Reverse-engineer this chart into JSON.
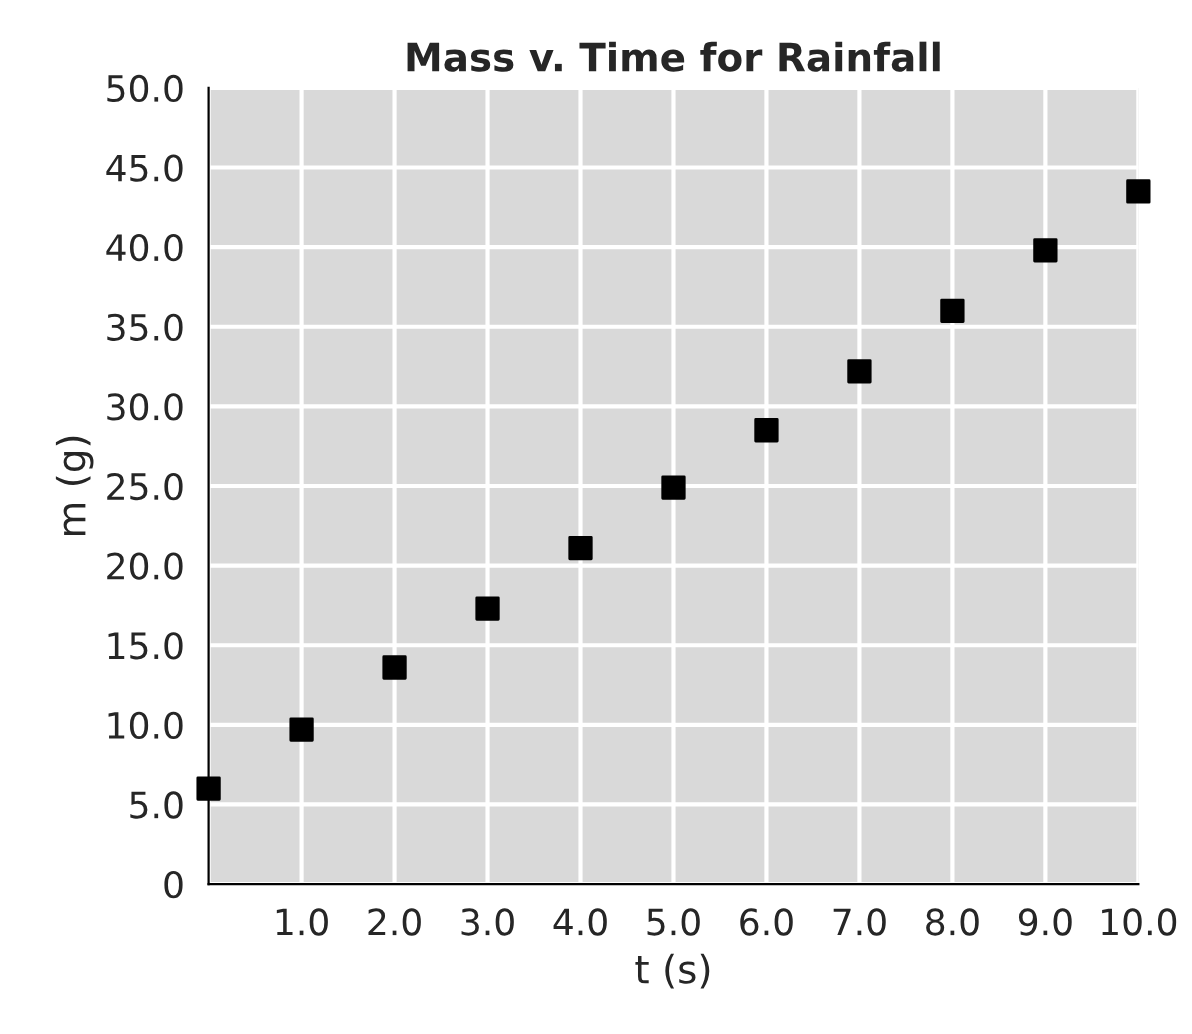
{
  "chart_data": {
    "type": "scatter",
    "title": "Mass v. Time for Rainfall",
    "xlabel": "t (s)",
    "ylabel": "m (g)",
    "x": [
      0,
      1,
      2,
      3,
      4,
      5,
      6,
      7,
      8,
      9,
      10
    ],
    "series": [
      {
        "color": "#000000",
        "values": [
          6.0,
          9.7,
          13.6,
          17.3,
          21.1,
          24.9,
          28.5,
          32.2,
          36.0,
          39.8,
          43.5
        ]
      }
    ],
    "xlim": [
      0,
      10
    ],
    "ylim": [
      0,
      50
    ],
    "xticks": [
      {
        "value": 0,
        "label": null
      },
      {
        "value": 1,
        "label": "1.0"
      },
      {
        "value": 2,
        "label": "2.0"
      },
      {
        "value": 3,
        "label": "3.0"
      },
      {
        "value": 4,
        "label": "4.0"
      },
      {
        "value": 5,
        "label": "5.0"
      },
      {
        "value": 6,
        "label": "6.0"
      },
      {
        "value": 7,
        "label": "7.0"
      },
      {
        "value": 8,
        "label": "8.0"
      },
      {
        "value": 9,
        "label": "9.0"
      },
      {
        "value": 10,
        "label": "10.0"
      }
    ],
    "yticks": [
      0,
      {
        "value": 5,
        "label": "5.0"
      },
      {
        "value": 10,
        "label": "10.0"
      },
      {
        "value": 15,
        "label": "15.0"
      },
      {
        "value": 20,
        "label": "20.0"
      },
      {
        "value": 25,
        "label": "25.0"
      },
      {
        "value": 30,
        "label": "30.0"
      },
      {
        "value": 35,
        "label": "35.0"
      },
      {
        "value": 40,
        "label": "40.0"
      },
      {
        "value": 45,
        "label": "45.0"
      },
      {
        "value": 50,
        "label": "50.0"
      }
    ],
    "grid": true,
    "marker": "square"
  }
}
